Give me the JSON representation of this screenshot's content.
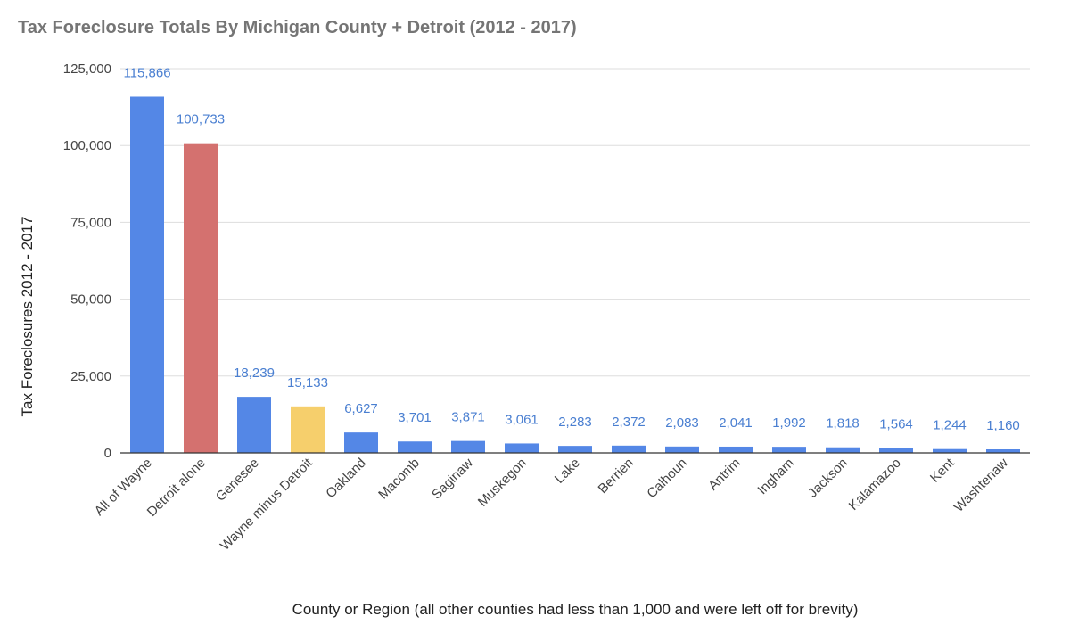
{
  "chart_data": {
    "type": "bar",
    "title": "Tax Foreclosure Totals By Michigan County + Detroit (2012 - 2017)",
    "xlabel": "County or Region (all other counties had less than 1,000 and were left off for brevity)",
    "ylabel": "Tax Foreclosures 2012 - 2017",
    "ylim": [
      0,
      125000
    ],
    "yticks": [
      0,
      25000,
      50000,
      75000,
      100000,
      125000
    ],
    "ytick_labels": [
      "0",
      "25,000",
      "50,000",
      "75,000",
      "100,000",
      "125,000"
    ],
    "grid": true,
    "legend": "none",
    "categories": [
      "All of Wayne",
      "Detroit alone",
      "Genesee",
      "Wayne minus Detroit",
      "Oakland",
      "Macomb",
      "Saginaw",
      "Muskegon",
      "Lake",
      "Berrien",
      "Calhoun",
      "Antrim",
      "Ingham",
      "Jackson",
      "Kalamazoo",
      "Kent",
      "Washtenaw"
    ],
    "values": [
      115866,
      100733,
      18239,
      15133,
      6627,
      3701,
      3871,
      3061,
      2283,
      2372,
      2083,
      2041,
      1992,
      1818,
      1564,
      1244,
      1160
    ],
    "value_labels": [
      "115,866",
      "100,733",
      "18,239",
      "15,133",
      "6,627",
      "3,701",
      "3,871",
      "3,061",
      "2,283",
      "2,372",
      "2,083",
      "2,041",
      "1,992",
      "1,818",
      "1,564",
      "1,244",
      "1,160"
    ],
    "colors": [
      "#5487e6",
      "#d4716f",
      "#5487e6",
      "#f6cf6c",
      "#5487e6",
      "#5487e6",
      "#5487e6",
      "#5487e6",
      "#5487e6",
      "#5487e6",
      "#5487e6",
      "#5487e6",
      "#5487e6",
      "#5487e6",
      "#5487e6",
      "#5487e6",
      "#5487e6"
    ],
    "label_color": "#4a7fd1"
  }
}
